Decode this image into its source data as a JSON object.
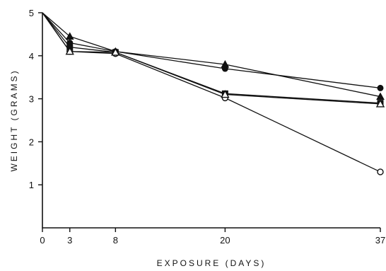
{
  "chart_data": {
    "type": "line",
    "xlabel": "EXPOSURE (DAYS)",
    "ylabel": "WEIGHT (GRAMS)",
    "xlim": [
      0,
      37
    ],
    "ylim": [
      0,
      5
    ],
    "xticks": [
      0,
      3,
      8,
      20,
      37
    ],
    "yticks": [
      1,
      2,
      3,
      4,
      5
    ],
    "x": [
      0,
      3,
      8,
      20,
      37
    ],
    "series": [
      {
        "marker": "filled-circle",
        "values": [
          5.0,
          4.3,
          4.1,
          3.7,
          3.25
        ]
      },
      {
        "marker": "filled-triangle",
        "values": [
          5.0,
          4.45,
          4.1,
          3.8,
          3.05
        ]
      },
      {
        "marker": "filled-square",
        "values": [
          5.0,
          4.2,
          4.08,
          3.12,
          2.9
        ]
      },
      {
        "marker": "open-circle",
        "values": [
          5.0,
          4.1,
          4.05,
          3.02,
          1.3
        ]
      },
      {
        "marker": "open-triangle",
        "values": [
          5.0,
          4.1,
          4.08,
          3.1,
          2.88
        ]
      }
    ]
  }
}
